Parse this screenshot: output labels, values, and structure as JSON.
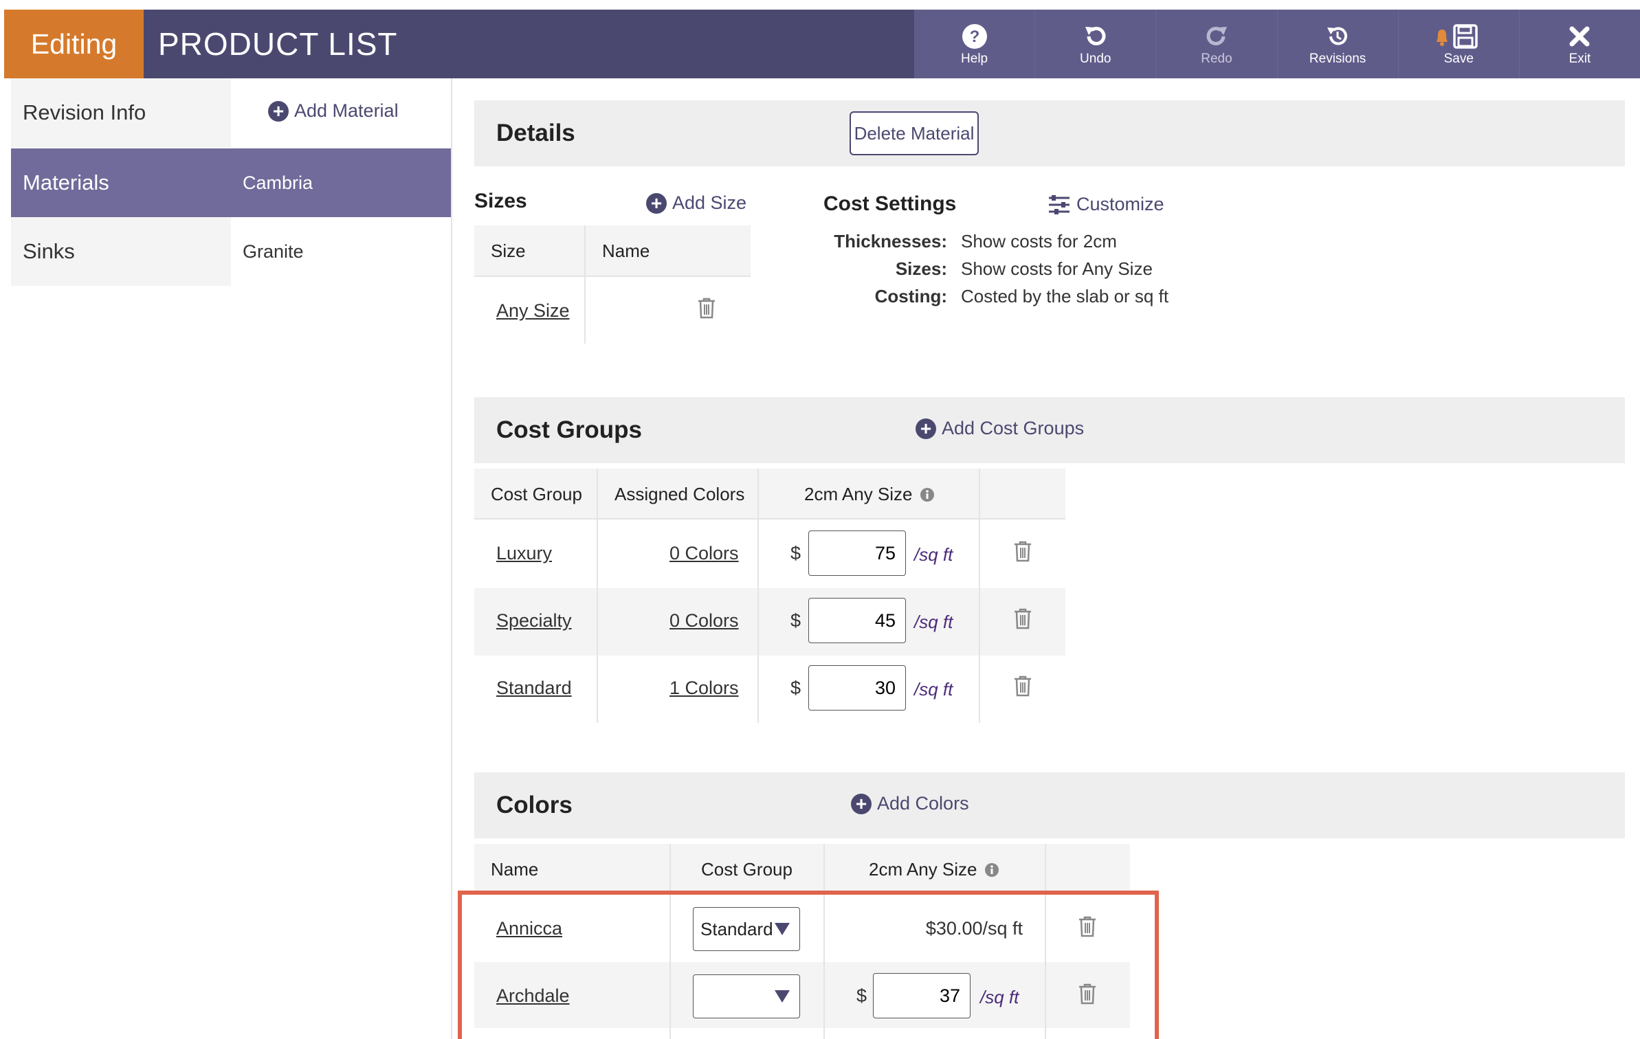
{
  "header": {
    "mode_label": "Editing",
    "title": "PRODUCT LIST",
    "toolbar": [
      {
        "label": "Help",
        "icon": "help-icon"
      },
      {
        "label": "Undo",
        "icon": "undo-icon"
      },
      {
        "label": "Redo",
        "icon": "redo-icon"
      },
      {
        "label": "Revisions",
        "icon": "revisions-icon"
      },
      {
        "label": "Save",
        "icon": "save-icon"
      },
      {
        "label": "Exit",
        "icon": "close-icon"
      }
    ]
  },
  "nav": {
    "items": [
      {
        "label": "Revision Info"
      },
      {
        "label": "Materials"
      },
      {
        "label": "Sinks"
      }
    ]
  },
  "materials": {
    "add_label": "Add Material",
    "items": [
      {
        "label": "Cambria"
      },
      {
        "label": "Granite"
      }
    ]
  },
  "details": {
    "title": "Details",
    "delete_label": "Delete Material",
    "sizes": {
      "title": "Sizes",
      "add_label": "Add Size",
      "headers": {
        "size": "Size",
        "name": "Name"
      },
      "rows": [
        {
          "size": "Any Size",
          "name": ""
        }
      ]
    },
    "cost_settings": {
      "title": "Cost Settings",
      "customize_label": "Customize",
      "rows": [
        {
          "label": "Thicknesses:",
          "value": "Show costs for 2cm"
        },
        {
          "label": "Sizes:",
          "value": "Show costs for Any Size"
        },
        {
          "label": "Costing:",
          "value": "Costed by the slab or sq ft"
        }
      ]
    }
  },
  "cost_groups": {
    "title": "Cost Groups",
    "add_label": "Add Cost Groups",
    "headers": {
      "group": "Cost Group",
      "colors": "Assigned Colors",
      "price": "2cm Any Size"
    },
    "currency": "$",
    "unit": "/sq ft",
    "rows": [
      {
        "name": "Luxury",
        "colors": "0 Colors",
        "value": "75"
      },
      {
        "name": "Specialty",
        "colors": "0 Colors",
        "value": "45"
      },
      {
        "name": "Standard",
        "colors": "1 Colors",
        "value": "30"
      }
    ]
  },
  "colors": {
    "title": "Colors",
    "add_label": "Add Colors",
    "headers": {
      "name": "Name",
      "group": "Cost Group",
      "price": "2cm Any Size"
    },
    "currency": "$",
    "unit": "/sq ft",
    "rows": [
      {
        "name": "Annicca",
        "group": "Standard",
        "price_text": "$30.00/sq ft"
      },
      {
        "name": "Archdale",
        "group": "",
        "value": "37"
      }
    ],
    "highlight_color": "#e0634c"
  },
  "colors_palette": {
    "header": "#4b4870",
    "mode": "#d57a2c",
    "active_nav": "#706b9a"
  }
}
